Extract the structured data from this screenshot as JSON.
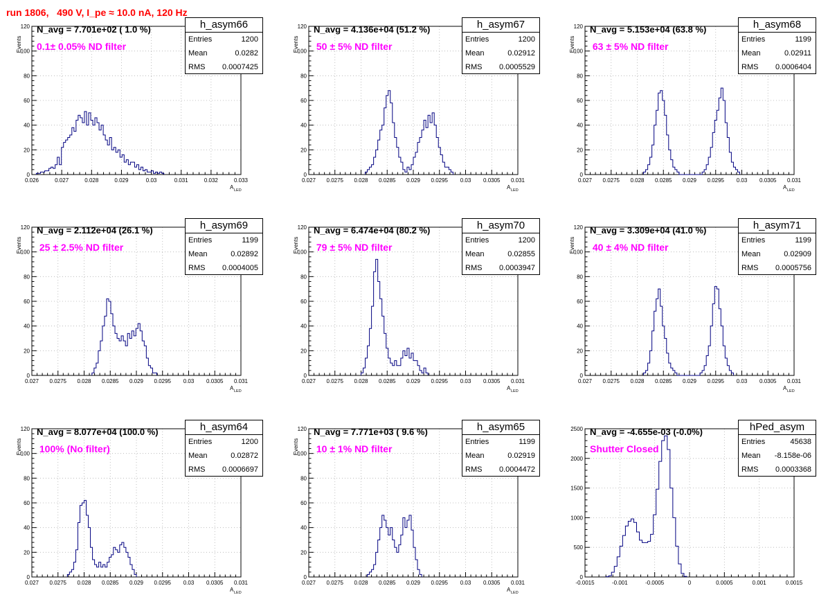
{
  "page": {
    "title": "run 1806,   490 V, I_pe ≈ 10.0 nA, 120 Hz"
  },
  "colors": {
    "title": "#ff0000",
    "histogram_line": "#000080",
    "filter_label": "#ff00ff",
    "grid": "#b0b0b0"
  },
  "chart_data": [
    {
      "type": "histogram",
      "name": "h_asym66",
      "n_avg_label": "N_avg = 7.701e+02 ( 1.0 %)",
      "filter_label": "0.1± 0.05% ND filter",
      "stats": {
        "entries": "1200",
        "mean": "0.0282",
        "rms": "0.0007425"
      },
      "xlabel": "A",
      "xlabel_sub": "LED",
      "ylabel": "Events",
      "xlim": [
        0.026,
        0.033
      ],
      "ylim": [
        0,
        120
      ],
      "xticks": [
        "0.026",
        "0.027",
        "0.028",
        "0.029",
        "0.03",
        "0.031",
        "0.032",
        "0.033"
      ],
      "yticks": [
        "0",
        "20",
        "40",
        "60",
        "80",
        "100",
        "120"
      ],
      "grid": true,
      "bin_start": 0.02615,
      "bin_width": 7e-05,
      "counts": [
        1,
        1,
        2,
        2,
        3,
        3,
        5,
        6,
        5,
        8,
        14,
        8,
        22,
        26,
        28,
        30,
        32,
        38,
        35,
        44,
        48,
        46,
        42,
        51,
        40,
        50,
        44,
        40,
        46,
        42,
        36,
        40,
        32,
        28,
        24,
        30,
        20,
        22,
        18,
        20,
        14,
        16,
        10,
        12,
        8,
        10,
        10,
        6,
        8,
        4,
        6,
        3,
        4,
        2,
        2,
        3,
        1,
        2,
        1,
        2,
        1
      ]
    },
    {
      "type": "histogram",
      "name": "h_asym67",
      "n_avg_label": "N_avg = 4.136e+04 (51.2 %)",
      "filter_label": " 50 ± 5% ND filter",
      "stats": {
        "entries": "1200",
        "mean": "0.02912",
        "rms": "0.0005529"
      },
      "xlabel": "A",
      "xlabel_sub": "LED",
      "ylabel": "Events",
      "xlim": [
        0.027,
        0.031
      ],
      "ylim": [
        0,
        120
      ],
      "xticks": [
        "0.027",
        "0.0275",
        "0.028",
        "0.0285",
        "0.029",
        "0.0295",
        "0.03",
        "0.0305",
        "0.031"
      ],
      "yticks": [
        "0",
        "20",
        "40",
        "60",
        "80",
        "100",
        "120"
      ],
      "grid": true,
      "bin_start": 0.02808,
      "bin_width": 4e-05,
      "counts": [
        2,
        4,
        6,
        8,
        14,
        20,
        28,
        36,
        40,
        54,
        64,
        68,
        58,
        42,
        30,
        22,
        14,
        10,
        4,
        2,
        6,
        4,
        8,
        14,
        18,
        26,
        30,
        36,
        44,
        38,
        48,
        42,
        50,
        40,
        30,
        22,
        16,
        10,
        6,
        6,
        4,
        2
      ]
    },
    {
      "type": "histogram",
      "name": "h_asym68",
      "n_avg_label": "N_avg = 5.153e+04 (63.8 %)",
      "filter_label": " 63 ± 5% ND filter",
      "stats": {
        "entries": "1199",
        "mean": "0.02911",
        "rms": "0.0006404"
      },
      "xlabel": "A",
      "xlabel_sub": "LED",
      "ylabel": "Events",
      "xlim": [
        0.027,
        0.031
      ],
      "ylim": [
        0,
        120
      ],
      "xticks": [
        "0.027",
        "0.0275",
        "0.028",
        "0.0285",
        "0.029",
        "0.0295",
        "0.03",
        "0.0305",
        "0.031"
      ],
      "yticks": [
        "0",
        "20",
        "40",
        "60",
        "80",
        "100",
        "120"
      ],
      "grid": true,
      "bin_start": 0.02812,
      "bin_width": 4e-05,
      "counts": [
        2,
        4,
        8,
        14,
        24,
        40,
        52,
        66,
        68,
        60,
        48,
        32,
        20,
        12,
        6,
        4,
        2,
        0,
        0,
        0,
        0,
        0,
        0,
        0,
        0,
        0,
        0,
        0,
        2,
        4,
        8,
        14,
        22,
        34,
        44,
        52,
        62,
        70,
        60,
        42,
        30,
        18,
        10,
        6,
        4,
        2
      ]
    },
    {
      "type": "histogram",
      "name": "h_asym69",
      "n_avg_label": "N_avg = 2.112e+04 (26.1 %)",
      "filter_label": " 25 ± 2.5% ND filter",
      "stats": {
        "entries": "1199",
        "mean": "0.02892",
        "rms": "0.0004005"
      },
      "xlabel": "A",
      "xlabel_sub": "LED",
      "ylabel": "Events",
      "xlim": [
        0.027,
        0.031
      ],
      "ylim": [
        0,
        120
      ],
      "xticks": [
        "0.027",
        "0.0275",
        "0.028",
        "0.0285",
        "0.029",
        "0.0295",
        "0.03",
        "0.0305",
        "0.031"
      ],
      "yticks": [
        "0",
        "20",
        "40",
        "60",
        "80",
        "100",
        "120"
      ],
      "grid": true,
      "bin_start": 0.02815,
      "bin_width": 4e-05,
      "counts": [
        2,
        6,
        10,
        20,
        28,
        40,
        48,
        62,
        60,
        50,
        40,
        34,
        30,
        28,
        32,
        28,
        24,
        34,
        30,
        36,
        32,
        38,
        42,
        36,
        28,
        24,
        14,
        8,
        6,
        2,
        2
      ]
    },
    {
      "type": "histogram",
      "name": "h_asym70",
      "n_avg_label": "N_avg = 6.474e+04 (80.2 %)",
      "filter_label": " 79 ± 5% ND filter",
      "stats": {
        "entries": "1200",
        "mean": "0.02855",
        "rms": "0.0003947"
      },
      "xlabel": "A",
      "xlabel_sub": "LED",
      "ylabel": "Events",
      "xlim": [
        0.027,
        0.031
      ],
      "ylim": [
        0,
        120
      ],
      "xticks": [
        "0.027",
        "0.0275",
        "0.028",
        "0.0285",
        "0.029",
        "0.0295",
        "0.03",
        "0.0305",
        "0.031"
      ],
      "yticks": [
        "0",
        "20",
        "40",
        "60",
        "80",
        "100",
        "120"
      ],
      "grid": true,
      "bin_start": 0.028,
      "bin_width": 4e-05,
      "counts": [
        2,
        6,
        14,
        24,
        38,
        56,
        84,
        94,
        76,
        62,
        48,
        34,
        22,
        14,
        10,
        8,
        12,
        8,
        8,
        14,
        20,
        16,
        22,
        14,
        18,
        12,
        12,
        8,
        4,
        2,
        6,
        2
      ]
    },
    {
      "type": "histogram",
      "name": "h_asym71",
      "n_avg_label": "N_avg = 3.309e+04 (41.0 %)",
      "filter_label": " 40 ± 4% ND filter",
      "stats": {
        "entries": "1199",
        "mean": "0.02909",
        "rms": "0.0005756"
      },
      "xlabel": "A",
      "xlabel_sub": "LED",
      "ylabel": "Events",
      "xlim": [
        0.027,
        0.031
      ],
      "ylim": [
        0,
        120
      ],
      "xticks": [
        "0.027",
        "0.0275",
        "0.028",
        "0.0285",
        "0.029",
        "0.0295",
        "0.03",
        "0.0305",
        "0.031"
      ],
      "yticks": [
        "0",
        "20",
        "40",
        "60",
        "80",
        "100",
        "120"
      ],
      "grid": true,
      "bin_start": 0.02812,
      "bin_width": 4e-05,
      "counts": [
        2,
        4,
        10,
        20,
        36,
        52,
        62,
        70,
        56,
        40,
        30,
        18,
        10,
        6,
        4,
        2,
        0,
        0,
        0,
        0,
        0,
        0,
        0,
        0,
        0,
        0,
        0,
        2,
        4,
        8,
        16,
        24,
        40,
        58,
        72,
        70,
        54,
        40,
        24,
        14,
        8,
        4,
        2
      ]
    },
    {
      "type": "histogram",
      "name": "h_asym64",
      "n_avg_label": "N_avg = 8.077e+04 (100.0 %)",
      "filter_label": " 100% (No filter)",
      "stats": {
        "entries": "1200",
        "mean": "0.02872",
        "rms": "0.0006697"
      },
      "xlabel": "A",
      "xlabel_sub": "LED",
      "ylabel": "Events",
      "xlim": [
        0.027,
        0.031
      ],
      "ylim": [
        0,
        120
      ],
      "xticks": [
        "0.027",
        "0.0275",
        "0.028",
        "0.0285",
        "0.029",
        "0.0295",
        "0.03",
        "0.0305",
        "0.031"
      ],
      "yticks": [
        "0",
        "20",
        "40",
        "60",
        "80",
        "100",
        "120"
      ],
      "grid": true,
      "bin_start": 0.02768,
      "bin_width": 4e-05,
      "counts": [
        2,
        4,
        6,
        12,
        22,
        44,
        58,
        60,
        62,
        50,
        40,
        24,
        14,
        10,
        8,
        12,
        8,
        10,
        8,
        12,
        16,
        18,
        24,
        22,
        20,
        26,
        28,
        24,
        20,
        16,
        10,
        6,
        2
      ]
    },
    {
      "type": "histogram",
      "name": "h_asym65",
      "n_avg_label": "N_avg = 7.771e+03 ( 9.6 %)",
      "filter_label": " 10 ± 1% ND filter",
      "stats": {
        "entries": "1199",
        "mean": "0.02919",
        "rms": "0.0004472"
      },
      "xlabel": "A",
      "xlabel_sub": "LED",
      "ylabel": "Events",
      "xlim": [
        0.027,
        0.031
      ],
      "ylim": [
        0,
        120
      ],
      "xticks": [
        "0.027",
        "0.0275",
        "0.028",
        "0.0285",
        "0.029",
        "0.0295",
        "0.03",
        "0.0305",
        "0.031"
      ],
      "yticks": [
        "0",
        "20",
        "40",
        "60",
        "80",
        "100",
        "120"
      ],
      "grid": true,
      "bin_start": 0.02812,
      "bin_width": 4e-05,
      "counts": [
        2,
        4,
        6,
        10,
        20,
        30,
        40,
        50,
        46,
        40,
        34,
        40,
        30,
        24,
        20,
        26,
        34,
        48,
        40,
        46,
        50,
        38,
        24,
        14,
        6,
        2
      ]
    },
    {
      "type": "histogram",
      "name": "hPed_asym",
      "n_avg_label": "N_avg = -4.655e-03 (-0.0%)",
      "filter_label": "Shutter Closed",
      "stats": {
        "entries": "45638",
        "mean": "-8.158e-06",
        "rms": "0.0003368"
      },
      "xlabel": "",
      "xlabel_sub": "",
      "ylabel": "",
      "xlim": [
        -0.0015,
        0.0015
      ],
      "ylim": [
        0,
        2500
      ],
      "xticks": [
        "-0.0015",
        "-0.001",
        "-0.0005",
        "0",
        "0.0005",
        "0.001",
        "0.0015"
      ],
      "yticks": [
        "0",
        "500",
        "1000",
        "1500",
        "2000",
        "2500"
      ],
      "grid": true,
      "bin_start": -0.0012,
      "bin_width": 4e-05,
      "counts": [
        5,
        20,
        80,
        180,
        340,
        520,
        700,
        860,
        940,
        980,
        920,
        760,
        620,
        580,
        580,
        600,
        720,
        1050,
        1480,
        1950,
        2300,
        2380,
        2150,
        1500,
        1000,
        520,
        220,
        60,
        10
      ]
    }
  ]
}
